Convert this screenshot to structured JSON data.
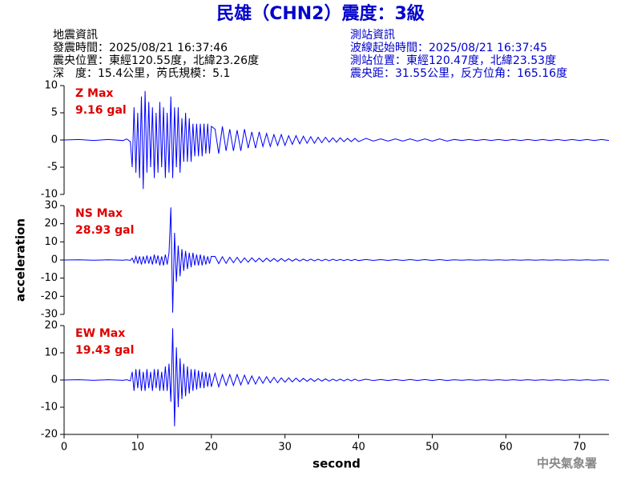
{
  "header": {
    "title": "民雄（CHN2）震度：3級",
    "left_lines": [
      "地震資訊",
      "發震時間：2025/08/21 16:37:46",
      "震央位置：東經120.55度，北緯23.26度",
      "深　度：15.4公里，芮氏規模：5.1"
    ],
    "right_lines": [
      "測站資訊",
      "波線起始時間：2025/08/21 16:37:45",
      "測站位置：東經120.47度，北緯23.53度",
      "震央距：31.55公里，反方位角：165.16度"
    ]
  },
  "ylabel": "acceleration",
  "footer": "中央氣象署",
  "chart_data": [
    {
      "type": "line",
      "annotations": [
        "Z Max",
        "9.16 gal"
      ],
      "xlim": [
        0,
        74
      ],
      "ylim": [
        -10,
        10
      ],
      "yticks": [
        -10,
        -5,
        0,
        5,
        10
      ],
      "x": [
        0,
        2,
        4,
        6,
        8,
        8.5,
        9,
        9.25,
        9.5,
        9.75,
        10,
        10.25,
        10.5,
        10.75,
        11,
        11.25,
        11.5,
        11.75,
        12,
        12.25,
        12.5,
        12.75,
        13,
        13.25,
        13.5,
        13.75,
        14,
        14.25,
        14.5,
        14.75,
        15,
        15.25,
        15.5,
        15.75,
        16,
        16.25,
        16.5,
        16.75,
        17,
        17.25,
        17.5,
        17.75,
        18,
        18.25,
        18.5,
        18.75,
        19,
        19.25,
        19.5,
        19.75,
        20,
        20.5,
        21,
        21.5,
        22,
        22.5,
        23,
        23.5,
        24,
        24.5,
        25,
        25.5,
        26,
        26.5,
        27,
        27.5,
        28,
        28.5,
        29,
        29.5,
        30,
        30.5,
        31,
        31.5,
        32,
        32.5,
        33,
        33.5,
        34,
        34.5,
        35,
        35.5,
        36,
        36.5,
        37,
        37.5,
        38,
        38.5,
        39,
        39.5,
        40,
        41,
        42,
        43,
        44,
        45,
        46,
        47,
        48,
        49,
        50,
        51,
        52,
        53,
        54,
        55,
        56,
        57,
        58,
        59,
        60,
        61,
        62,
        63,
        64,
        65,
        66,
        67,
        68,
        69,
        70,
        71,
        72,
        73,
        74
      ],
      "series": [
        {
          "color": "#0000ff",
          "values": [
            0,
            0.1,
            -0.1,
            0.1,
            -0.1,
            0.2,
            -0.3,
            -5,
            6,
            -6,
            5,
            -7,
            8,
            -9,
            9,
            -6,
            7,
            -5,
            6,
            -7,
            5,
            -6,
            7,
            -5,
            6,
            -7,
            5,
            -6,
            8,
            -7,
            6,
            -5,
            6,
            -6,
            4,
            -4,
            5,
            -4,
            4,
            -4,
            3,
            -3,
            3,
            -3,
            3,
            -3,
            3,
            -2.5,
            3,
            -2.5,
            2.5,
            2,
            -2.5,
            2.5,
            -2,
            2,
            -2,
            1.8,
            -2,
            2,
            -1.5,
            1.5,
            -1.5,
            1.5,
            -1.2,
            1.2,
            -1.2,
            1,
            -1,
            1,
            -1,
            0.8,
            -0.8,
            0.8,
            -0.7,
            0.7,
            -0.6,
            0.6,
            -0.6,
            0.5,
            -0.5,
            0.5,
            -0.4,
            0.4,
            -0.4,
            0.4,
            -0.3,
            0.3,
            -0.3,
            0.3,
            -0.3,
            0.3,
            -0.2,
            0.2,
            -0.2,
            0.2,
            -0.2,
            0.2,
            -0.2,
            0.2,
            -0.2,
            0.2,
            -0.2,
            0.1,
            -0.1,
            0.1,
            -0.1,
            0.1,
            -0.1,
            0.1,
            -0.1,
            0.1,
            -0.1,
            0.1,
            -0.1,
            0.1,
            -0.1,
            0.1,
            -0.1,
            0.1,
            -0.1,
            0.1,
            -0.1,
            0.1,
            -0.1
          ]
        }
      ]
    },
    {
      "type": "line",
      "annotations": [
        "NS Max",
        "28.93 gal"
      ],
      "xlim": [
        0,
        74
      ],
      "ylim": [
        -30,
        30
      ],
      "yticks": [
        -30,
        -20,
        -10,
        0,
        10,
        20,
        30
      ],
      "x": [
        0,
        2,
        4,
        6,
        8,
        8.5,
        9,
        9.25,
        9.5,
        9.75,
        10,
        10.25,
        10.5,
        10.75,
        11,
        11.25,
        11.5,
        11.75,
        12,
        12.25,
        12.5,
        12.75,
        13,
        13.25,
        13.5,
        13.75,
        14,
        14.25,
        14.5,
        14.75,
        15,
        15.25,
        15.5,
        15.75,
        16,
        16.25,
        16.5,
        16.75,
        17,
        17.25,
        17.5,
        17.75,
        18,
        18.25,
        18.5,
        18.75,
        19,
        19.25,
        19.5,
        19.75,
        20,
        20.5,
        21,
        21.5,
        22,
        22.5,
        23,
        23.5,
        24,
        24.5,
        25,
        25.5,
        26,
        26.5,
        27,
        27.5,
        28,
        28.5,
        29,
        29.5,
        30,
        30.5,
        31,
        31.5,
        32,
        32.5,
        33,
        33.5,
        34,
        34.5,
        35,
        35.5,
        36,
        36.5,
        37,
        37.5,
        38,
        38.5,
        39,
        39.5,
        40,
        41,
        42,
        43,
        44,
        45,
        46,
        47,
        48,
        49,
        50,
        51,
        52,
        53,
        54,
        55,
        56,
        57,
        58,
        59,
        60,
        61,
        62,
        63,
        64,
        65,
        66,
        67,
        68,
        69,
        70,
        71,
        72,
        73,
        74
      ],
      "series": [
        {
          "color": "#0000ff",
          "values": [
            0,
            0.1,
            -0.1,
            0.1,
            -0.1,
            0.1,
            -0.2,
            1,
            -1.5,
            2,
            -2,
            2,
            -2.5,
            2,
            -2,
            2.5,
            -2,
            2,
            -2.5,
            3,
            -2,
            2.5,
            -3,
            2,
            -3,
            3,
            -2.5,
            4,
            29,
            -29,
            15,
            -12,
            8,
            -9,
            6,
            -6,
            5,
            -5,
            4,
            -4,
            4,
            -3,
            3,
            -3,
            3,
            -3,
            2.5,
            -2.5,
            2,
            -2,
            2,
            2,
            -2,
            1.8,
            -1.8,
            1.5,
            -1.5,
            1.5,
            -1.5,
            1.2,
            -1.2,
            1.2,
            -1,
            1,
            -1,
            1,
            -0.8,
            0.8,
            -0.8,
            0.8,
            -0.7,
            0.7,
            -0.6,
            0.6,
            -0.6,
            0.5,
            -0.5,
            0.5,
            -0.5,
            0.4,
            -0.4,
            0.4,
            -0.4,
            0.4,
            -0.3,
            0.3,
            -0.3,
            0.3,
            -0.3,
            0.3,
            -0.3,
            0.3,
            -0.2,
            0.2,
            -0.2,
            0.2,
            -0.2,
            0.2,
            -0.2,
            0.2,
            -0.2,
            0.2,
            -0.2,
            0.1,
            -0.1,
            0.1,
            -0.1,
            0.1,
            -0.1,
            0.1,
            -0.1,
            0.1,
            -0.1,
            0.1,
            -0.1,
            0.1,
            -0.1,
            0.1,
            -0.1,
            0.1,
            -0.1,
            0.1,
            -0.1,
            0.1,
            -0.1
          ]
        }
      ]
    },
    {
      "type": "line",
      "annotations": [
        "EW Max",
        "19.43 gal"
      ],
      "xlim": [
        0,
        74
      ],
      "ylim": [
        -20,
        20
      ],
      "yticks": [
        -20,
        -10,
        0,
        10,
        20
      ],
      "xticks": [
        0,
        10,
        20,
        30,
        40,
        50,
        60,
        70
      ],
      "xlabel": "second",
      "x": [
        0,
        2,
        4,
        6,
        8,
        8.5,
        9,
        9.25,
        9.5,
        9.75,
        10,
        10.25,
        10.5,
        10.75,
        11,
        11.25,
        11.5,
        11.75,
        12,
        12.25,
        12.5,
        12.75,
        13,
        13.25,
        13.5,
        13.75,
        14,
        14.25,
        14.5,
        14.75,
        15,
        15.25,
        15.5,
        15.75,
        16,
        16.25,
        16.5,
        16.75,
        17,
        17.25,
        17.5,
        17.75,
        18,
        18.25,
        18.5,
        18.75,
        19,
        19.25,
        19.5,
        19.75,
        20,
        20.5,
        21,
        21.5,
        22,
        22.5,
        23,
        23.5,
        24,
        24.5,
        25,
        25.5,
        26,
        26.5,
        27,
        27.5,
        28,
        28.5,
        29,
        29.5,
        30,
        30.5,
        31,
        31.5,
        32,
        32.5,
        33,
        33.5,
        34,
        34.5,
        35,
        35.5,
        36,
        36.5,
        37,
        37.5,
        38,
        38.5,
        39,
        39.5,
        40,
        41,
        42,
        43,
        44,
        45,
        46,
        47,
        48,
        49,
        50,
        51,
        52,
        53,
        54,
        55,
        56,
        57,
        58,
        59,
        60,
        61,
        62,
        63,
        64,
        65,
        66,
        67,
        68,
        69,
        70,
        71,
        72,
        73,
        74
      ],
      "series": [
        {
          "color": "#0000ff",
          "values": [
            0,
            0.1,
            -0.1,
            0.1,
            -0.1,
            0.1,
            -0.3,
            3,
            -4,
            4,
            -3,
            4,
            -4,
            3,
            -4,
            4,
            -3,
            3,
            -4,
            4,
            -3,
            4,
            -4,
            3,
            -4,
            5,
            -4,
            6,
            -8,
            19,
            -17,
            12,
            -10,
            8,
            -7,
            6,
            -6,
            5,
            -5,
            4,
            -4,
            4,
            -3.5,
            3.5,
            -3,
            3,
            -3,
            3,
            -2.5,
            2.5,
            -2.5,
            2.5,
            -2.5,
            2,
            -2,
            2,
            -2,
            2,
            -1.8,
            1.8,
            -1.5,
            1.5,
            -1.5,
            1.2,
            -1.2,
            1.2,
            -1,
            1,
            -1,
            0.8,
            -0.8,
            0.8,
            -0.7,
            0.7,
            -0.6,
            0.6,
            -0.5,
            0.5,
            -0.5,
            0.5,
            -0.4,
            0.4,
            -0.4,
            0.3,
            -0.3,
            0.3,
            -0.3,
            0.3,
            -0.3,
            0.3,
            -0.3,
            0.3,
            -0.2,
            0.2,
            -0.2,
            0.2,
            -0.2,
            0.2,
            -0.2,
            0.2,
            -0.2,
            0.2,
            -0.2,
            0.1,
            -0.1,
            0.1,
            -0.1,
            0.1,
            -0.1,
            0.1,
            -0.1,
            0.1,
            -0.1,
            0.1,
            -0.1,
            0.1,
            -0.1,
            0.1,
            -0.1,
            0.1,
            -0.1,
            0.1,
            -0.1,
            0.1,
            -0.1
          ]
        }
      ]
    }
  ]
}
